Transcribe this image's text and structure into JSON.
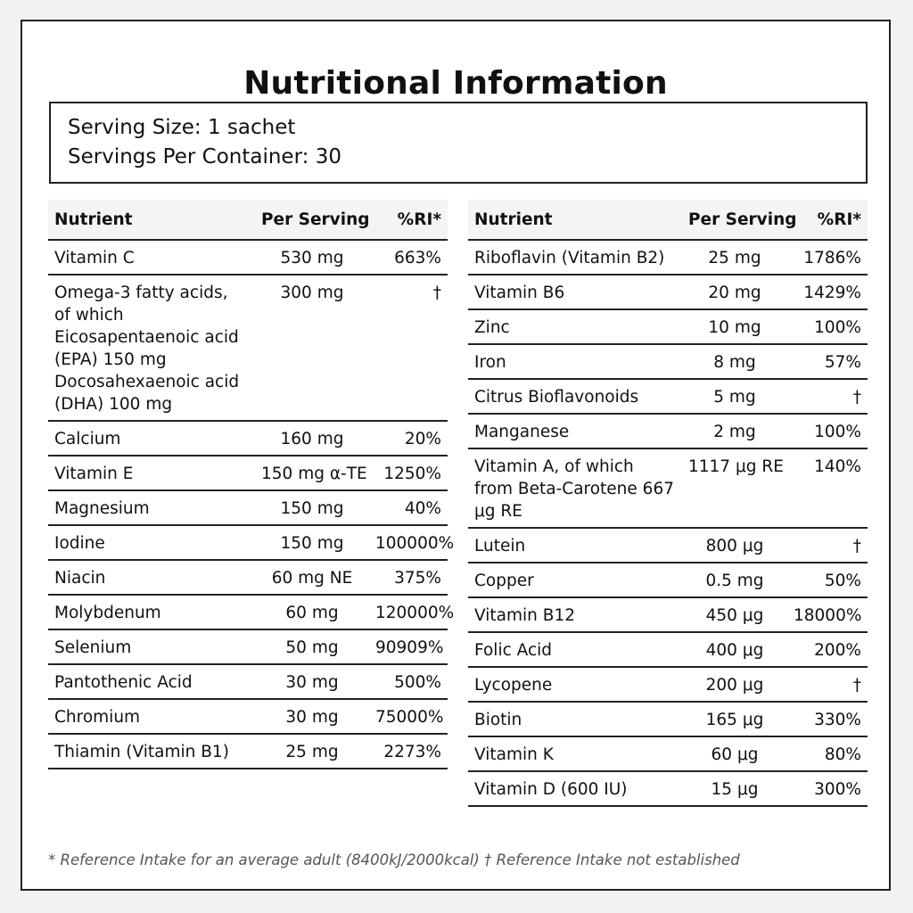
{
  "title": "Nutritional Information",
  "serving": {
    "size": "Serving Size: 1 sachet",
    "per_container": "Servings Per Container: 30"
  },
  "table_left": {
    "headers": [
      "Nutrient",
      "Per Serving",
      "%RI*"
    ],
    "rows": [
      [
        "Vitamin C",
        "530 mg",
        "663%"
      ],
      [
        "Omega-3 fatty acids, of which Eicosapentaenoic acid (EPA) 150 mg Docosahexaenoic acid (DHA) 100 mg",
        "300 mg",
        "†"
      ],
      [
        "Calcium",
        "160 mg",
        "20%"
      ],
      [
        "Vitamin E",
        "150 mg α-TE",
        "1250%"
      ],
      [
        "Magnesium",
        "150 mg",
        "40%"
      ],
      [
        "Iodine",
        "150 mg",
        "100000%"
      ],
      [
        "Niacin",
        "60 mg NE",
        "375%"
      ],
      [
        "Molybdenum",
        "60 mg",
        "120000%"
      ],
      [
        "Selenium",
        "50 mg",
        "90909%"
      ],
      [
        "Pantothenic Acid",
        "30 mg",
        "500%"
      ],
      [
        "Chromium",
        "30 mg",
        "75000%"
      ],
      [
        "Thiamin (Vitamin B1)",
        "25 mg",
        "2273%"
      ]
    ]
  },
  "table_right": {
    "headers": [
      "Nutrient",
      "Per Serving",
      "%RI*"
    ],
    "rows": [
      [
        "Riboflavin (Vitamin B2)",
        "25 mg",
        "1786%"
      ],
      [
        "Vitamin B6",
        "20 mg",
        "1429%"
      ],
      [
        "Zinc",
        "10 mg",
        "100%"
      ],
      [
        "Iron",
        "8 mg",
        "57%"
      ],
      [
        "Citrus Bioflavonoids",
        "5 mg",
        "†"
      ],
      [
        "Manganese",
        "2 mg",
        "100%"
      ],
      [
        "Vitamin A, of which from Beta-Carotene 667 μg RE",
        "1117 μg RE",
        "140%"
      ],
      [
        "Lutein",
        "800 μg",
        "†"
      ],
      [
        "Copper",
        "0.5 mg",
        "50%"
      ],
      [
        "Vitamin B12",
        "450 μg",
        "18000%"
      ],
      [
        "Folic Acid",
        "400 μg",
        "200%"
      ],
      [
        "Lycopene",
        "200 μg",
        "†"
      ],
      [
        "Biotin",
        "165 μg",
        "330%"
      ],
      [
        "Vitamin K",
        "60 μg",
        "80%"
      ],
      [
        "Vitamin D (600 IU)",
        "15 μg",
        "300%"
      ]
    ]
  },
  "footnote": "* Reference Intake for an average adult (8400kJ/2000kcal) † Reference Intake not established"
}
